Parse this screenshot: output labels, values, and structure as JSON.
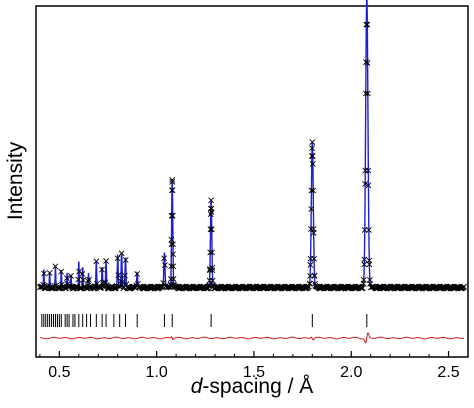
{
  "chart_data": {
    "type": "line",
    "title": "",
    "xlabel_italic": "d",
    "xlabel_rest": "-spacing / Å",
    "ylabel": "Intensity",
    "xlim": [
      0.38,
      2.6
    ],
    "xticks": [
      0.5,
      1.0,
      1.5,
      2.0,
      2.5
    ],
    "xtick_labels": [
      "0.5",
      "1.0",
      "1.5",
      "2.0",
      "2.5"
    ],
    "y_tick_labels_shown": false,
    "grid": false,
    "legend": "none",
    "colors": {
      "observed": "#000000",
      "calculated": "#1f1fd0",
      "difference": "#c81e1e",
      "reflection_ticks": "#000000",
      "frame": "#000000"
    },
    "ylim": [
      0,
      100
    ],
    "background_level": 6,
    "baseline_level": 0,
    "peaks": [
      {
        "d": 0.42,
        "intensity": 6
      },
      {
        "d": 0.45,
        "intensity": 5
      },
      {
        "d": 0.48,
        "intensity": 7
      },
      {
        "d": 0.51,
        "intensity": 6
      },
      {
        "d": 0.54,
        "intensity": 5
      },
      {
        "d": 0.56,
        "intensity": 4
      },
      {
        "d": 0.6,
        "intensity": 9
      },
      {
        "d": 0.62,
        "intensity": 7
      },
      {
        "d": 0.65,
        "intensity": 5
      },
      {
        "d": 0.69,
        "intensity": 9
      },
      {
        "d": 0.72,
        "intensity": 7
      },
      {
        "d": 0.74,
        "intensity": 9
      },
      {
        "d": 0.8,
        "intensity": 11
      },
      {
        "d": 0.82,
        "intensity": 12
      },
      {
        "d": 0.84,
        "intensity": 10
      },
      {
        "d": 0.9,
        "intensity": 5
      },
      {
        "d": 1.04,
        "intensity": 12
      },
      {
        "d": 1.08,
        "intensity": 37
      },
      {
        "d": 1.28,
        "intensity": 30
      },
      {
        "d": 1.8,
        "intensity": 50
      },
      {
        "d": 2.08,
        "intensity": 100
      }
    ],
    "reflection_ticks_d": [
      0.41,
      0.42,
      0.43,
      0.44,
      0.45,
      0.46,
      0.47,
      0.48,
      0.49,
      0.5,
      0.51,
      0.53,
      0.54,
      0.55,
      0.57,
      0.58,
      0.6,
      0.62,
      0.64,
      0.66,
      0.69,
      0.72,
      0.74,
      0.78,
      0.81,
      0.84,
      0.9,
      1.04,
      1.08,
      1.28,
      1.8,
      2.08
    ],
    "difference_features": [
      {
        "d": 2.08,
        "amplitude": -3
      },
      {
        "d": 1.8,
        "amplitude": 1
      },
      {
        "d": 1.08,
        "amplitude": 1
      }
    ]
  }
}
